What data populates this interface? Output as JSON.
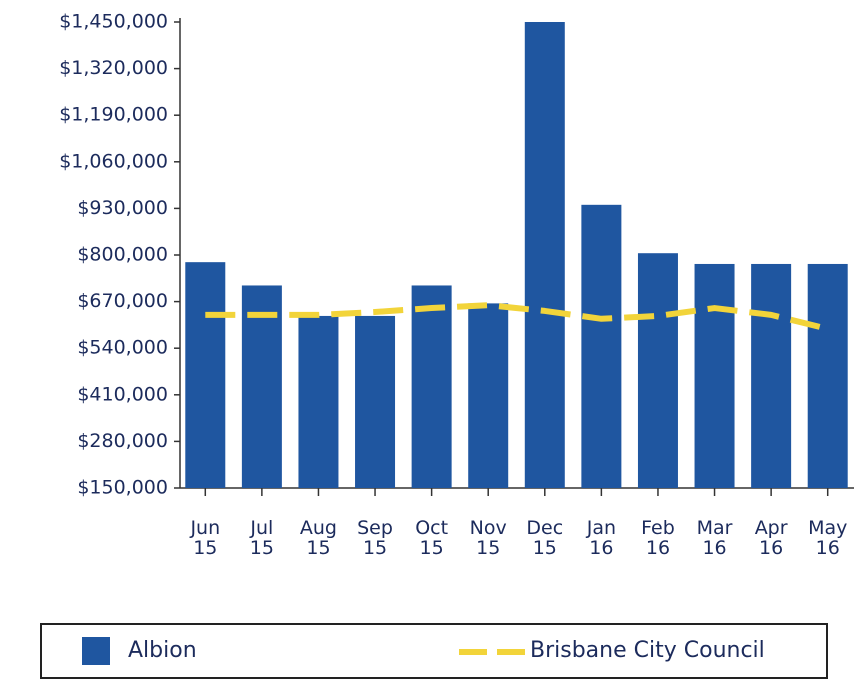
{
  "chart_data": {
    "type": "bar",
    "categories": [
      "Jun 15",
      "Jul 15",
      "Aug 15",
      "Sep 15",
      "Oct 15",
      "Nov 15",
      "Dec 15",
      "Jan 16",
      "Feb 16",
      "Mar 16",
      "Apr 16",
      "May 16"
    ],
    "series": [
      {
        "name": "Albion",
        "type": "bar",
        "color": "#1f56a0",
        "values": [
          780000,
          715000,
          630000,
          630000,
          715000,
          665000,
          1450000,
          940000,
          805000,
          775000,
          775000,
          775000
        ]
      },
      {
        "name": "Brisbane City Council",
        "type": "line",
        "color": "#f2d43a",
        "values": [
          633000,
          633000,
          633000,
          641000,
          652000,
          660000,
          644000,
          622000,
          630000,
          652000,
          633000,
          594000
        ]
      }
    ],
    "ylim": [
      150000,
      1450000
    ],
    "yticks": [
      {
        "value": 150000,
        "label": "$150,000"
      },
      {
        "value": 280000,
        "label": "$280,000"
      },
      {
        "value": 410000,
        "label": "$410,000"
      },
      {
        "value": 540000,
        "label": "$540,000"
      },
      {
        "value": 670000,
        "label": "$670,000"
      },
      {
        "value": 800000,
        "label": "$800,000"
      },
      {
        "value": 930000,
        "label": "$930,000"
      },
      {
        "value": 1060000,
        "label": "$1,060,000"
      },
      {
        "value": 1190000,
        "label": "$1,190,000"
      },
      {
        "value": 1320000,
        "label": "$1,320,000"
      },
      {
        "value": 1450000,
        "label": "$1,450,000"
      }
    ],
    "legend": "bottom"
  }
}
